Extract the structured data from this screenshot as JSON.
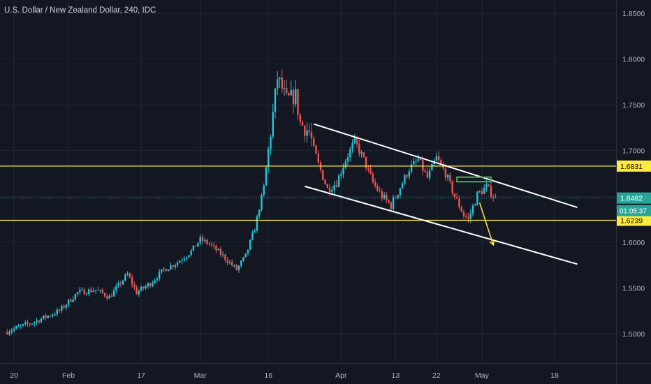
{
  "header": {
    "title": "U.S. Dollar / New Zealand Dollar, 240, IDC"
  },
  "colors": {
    "background": "#131722",
    "grid": "#232735",
    "up": "#26c6da",
    "down": "#ef5350",
    "level": "#ffeb3b",
    "channel": "#ffffff",
    "target_box": "#4caf50",
    "price_line": "#26a69a",
    "axis_text": "#b2b5be"
  },
  "chart_data": {
    "type": "candlestick",
    "title": "U.S. Dollar / New Zealand Dollar, 240, IDC",
    "ylim": [
      1.48,
      1.86
    ],
    "y_ticks": [
      "1.8500",
      "1.8000",
      "1.7500",
      "1.7000",
      "1.6500",
      "1.6000",
      "1.5500",
      "1.5000"
    ],
    "y_tick_values": [
      1.85,
      1.8,
      1.75,
      1.7,
      1.65,
      1.6,
      1.55,
      1.5
    ],
    "x_ticks": [
      "20",
      "Feb",
      "17",
      "Mar",
      "16",
      "Apr",
      "13",
      "22",
      "May",
      "18"
    ],
    "x_tick_days": [
      0,
      12,
      28,
      41,
      56,
      72,
      84,
      93,
      103,
      119
    ],
    "xlim_days": [
      -2,
      128
    ],
    "grid": true,
    "price_anchors": [
      [
        -2,
        1.502
      ],
      [
        4,
        1.512
      ],
      [
        10,
        1.525
      ],
      [
        14,
        1.545
      ],
      [
        18,
        1.548
      ],
      [
        21,
        1.54
      ],
      [
        25,
        1.565
      ],
      [
        27,
        1.545
      ],
      [
        30,
        1.555
      ],
      [
        33,
        1.57
      ],
      [
        36,
        1.578
      ],
      [
        39,
        1.59
      ],
      [
        41,
        1.603
      ],
      [
        43,
        1.598
      ],
      [
        46,
        1.585
      ],
      [
        49,
        1.57
      ],
      [
        51,
        1.585
      ],
      [
        53,
        1.615
      ],
      [
        55,
        1.66
      ],
      [
        57,
        1.74
      ],
      [
        58,
        1.78
      ],
      [
        60,
        1.755
      ],
      [
        62,
        1.76
      ],
      [
        63,
        1.73
      ],
      [
        65,
        1.72
      ],
      [
        67,
        1.685
      ],
      [
        69,
        1.658
      ],
      [
        71,
        1.665
      ],
      [
        73,
        1.69
      ],
      [
        75,
        1.71
      ],
      [
        77,
        1.69
      ],
      [
        79,
        1.665
      ],
      [
        81,
        1.65
      ],
      [
        83,
        1.64
      ],
      [
        85,
        1.66
      ],
      [
        87,
        1.68
      ],
      [
        89,
        1.69
      ],
      [
        91,
        1.67
      ],
      [
        93,
        1.692
      ],
      [
        95,
        1.675
      ],
      [
        97,
        1.65
      ],
      [
        99,
        1.63
      ],
      [
        100,
        1.625
      ],
      [
        102,
        1.652
      ],
      [
        104,
        1.66
      ],
      [
        106,
        1.648
      ]
    ],
    "levels": [
      {
        "name": "resistance",
        "value": 1.6831,
        "label": "1.6831"
      },
      {
        "name": "support",
        "value": 1.6239,
        "label": "1.6239"
      }
    ],
    "last_price": {
      "value": 1.6482,
      "label": "1.6482",
      "countdown": "01:05:37"
    },
    "channel": {
      "upper": [
        [
          66,
          1.729
        ],
        [
          124,
          1.638
        ]
      ],
      "lower": [
        [
          64,
          1.661
        ],
        [
          124,
          1.576
        ]
      ]
    },
    "target_box": {
      "x": [
        97.5,
        105
      ],
      "y": [
        1.666,
        1.671
      ]
    },
    "arrow": {
      "from": [
        102.5,
        1.643
      ],
      "to": [
        105.5,
        1.597
      ]
    }
  }
}
